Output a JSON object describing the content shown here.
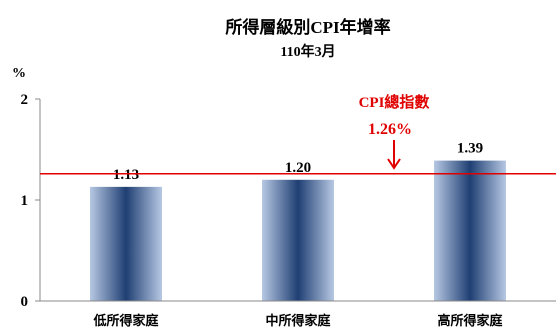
{
  "chart_data": {
    "type": "bar",
    "title": "所得層級別CPI年增率",
    "subtitle": "110年3月",
    "ylabel": "%",
    "ylim": [
      0,
      2
    ],
    "yticks": [
      "0",
      "1",
      "2"
    ],
    "categories": [
      "低所得家庭",
      "中所得家庭",
      "高所得家庭"
    ],
    "values": [
      1.13,
      1.2,
      1.39
    ],
    "value_labels": [
      "1.13",
      "1.20",
      "1.39"
    ],
    "grid": false,
    "reference_line": {
      "label": "CPI總指數",
      "value": 1.26,
      "value_label": "1.26%",
      "color": "#e00000"
    },
    "colors": {
      "bar_center": "#1f3f73",
      "bar_edge": "#b7c8e3",
      "axis": "#888888"
    }
  }
}
